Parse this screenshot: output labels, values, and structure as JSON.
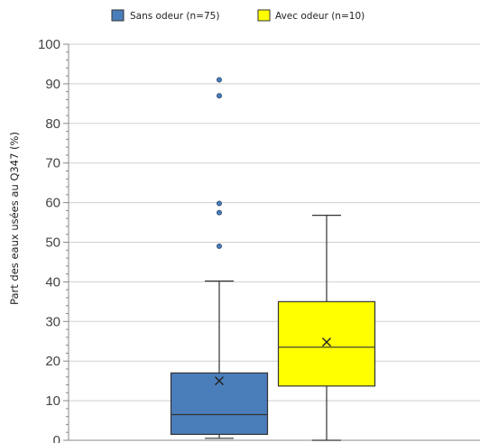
{
  "chart_data": {
    "type": "box",
    "xlabel": "",
    "ylabel": "Part des eaux usées au Q347 (%)",
    "ylim": [
      0,
      100
    ],
    "yticks": [
      0,
      10,
      20,
      30,
      40,
      50,
      60,
      70,
      80,
      90,
      100
    ],
    "grid": "horizontal",
    "legend_position": "top",
    "series": [
      {
        "name": "Sans odeur (n=75)",
        "color": "#4a7ebb",
        "min": 0.5,
        "q1": 1.5,
        "median": 6.5,
        "q3": 17.0,
        "max": 40.2,
        "mean": 15.0,
        "outliers": [
          49.0,
          57.5,
          59.8,
          87.0,
          91.0
        ]
      },
      {
        "name": "Avec odeur (n=10)",
        "color": "#ffff00",
        "min": 0.0,
        "q1": 13.7,
        "median": 23.5,
        "q3": 35.0,
        "max": 56.8,
        "mean": 24.8,
        "outliers": []
      }
    ]
  }
}
